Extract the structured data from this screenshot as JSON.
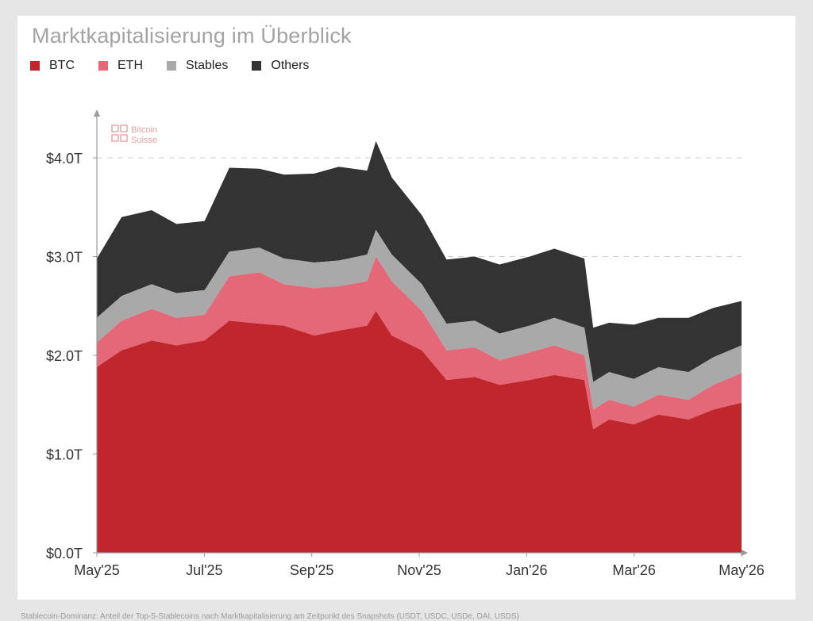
{
  "title": "Marktkapitalisierung im Überblick",
  "legend": [
    {
      "name": "BTC",
      "color": "#c0272d"
    },
    {
      "name": "ETH",
      "color": "#e56878"
    },
    {
      "name": "Stables",
      "color": "#a9a9a9"
    },
    {
      "name": "Others",
      "color": "#333333"
    }
  ],
  "watermark": [
    "Bitcoin",
    "Suisse"
  ],
  "footnote": "Stablecoin-Dominanz: Anteil der Top-5-Stablecoins nach Marktkapitalisierung am Zeitpunkt des Snapshots (USDT, USDC, USDe, DAI, USDS)",
  "chart_data": {
    "type": "area",
    "stacked": true,
    "title": "Marktkapitalisierung im Überblick",
    "x_start": "2025-05",
    "x_ticks": [
      "May'25",
      "Jul'25",
      "Sep'25",
      "Nov'25",
      "Jan'26",
      "Mar'26",
      "May'26"
    ],
    "y_ticks": [
      "$0.0T",
      "$1.0T",
      "$2.0T",
      "$3.0T",
      "$4.0T"
    ],
    "ylim": [
      0,
      4.5
    ],
    "unit": "trillion USD",
    "grid": "dashed horizontal at 3.0T and 4.0T",
    "legend_position": "top-left",
    "x": [
      "2025-05-01",
      "2025-05-15",
      "2025-06-01",
      "2025-06-15",
      "2025-07-01",
      "2025-07-15",
      "2025-08-01",
      "2025-08-15",
      "2025-09-01",
      "2025-09-15",
      "2025-10-01",
      "2025-10-06",
      "2025-10-15",
      "2025-11-01",
      "2025-11-15",
      "2025-12-01",
      "2025-12-15",
      "2026-01-01",
      "2026-01-15",
      "2026-02-01",
      "2026-02-06",
      "2026-02-15",
      "2026-03-01",
      "2026-03-15",
      "2026-04-01",
      "2026-04-15",
      "2026-05-01"
    ],
    "series": [
      {
        "name": "BTC",
        "values": [
          1.88,
          2.05,
          2.15,
          2.1,
          2.15,
          2.35,
          2.32,
          2.3,
          2.2,
          2.25,
          2.3,
          2.45,
          2.2,
          2.05,
          1.75,
          1.78,
          1.7,
          1.75,
          1.8,
          1.75,
          1.25,
          1.35,
          1.3,
          1.4,
          1.35,
          1.45,
          1.52
        ]
      },
      {
        "name": "ETH",
        "values": [
          0.25,
          0.3,
          0.32,
          0.28,
          0.26,
          0.45,
          0.52,
          0.42,
          0.48,
          0.45,
          0.45,
          0.55,
          0.55,
          0.4,
          0.3,
          0.3,
          0.25,
          0.28,
          0.3,
          0.25,
          0.2,
          0.2,
          0.18,
          0.2,
          0.2,
          0.25,
          0.3
        ]
      },
      {
        "name": "Stables",
        "values": [
          0.25,
          0.25,
          0.25,
          0.25,
          0.25,
          0.25,
          0.25,
          0.26,
          0.26,
          0.26,
          0.27,
          0.27,
          0.27,
          0.27,
          0.27,
          0.27,
          0.27,
          0.27,
          0.28,
          0.28,
          0.28,
          0.28,
          0.28,
          0.28,
          0.28,
          0.28,
          0.28
        ]
      },
      {
        "name": "Others",
        "values": [
          0.6,
          0.8,
          0.75,
          0.7,
          0.7,
          0.85,
          0.8,
          0.85,
          0.9,
          0.95,
          0.85,
          0.9,
          0.78,
          0.7,
          0.65,
          0.65,
          0.7,
          0.7,
          0.7,
          0.7,
          0.55,
          0.5,
          0.55,
          0.5,
          0.55,
          0.5,
          0.45
        ]
      }
    ]
  }
}
